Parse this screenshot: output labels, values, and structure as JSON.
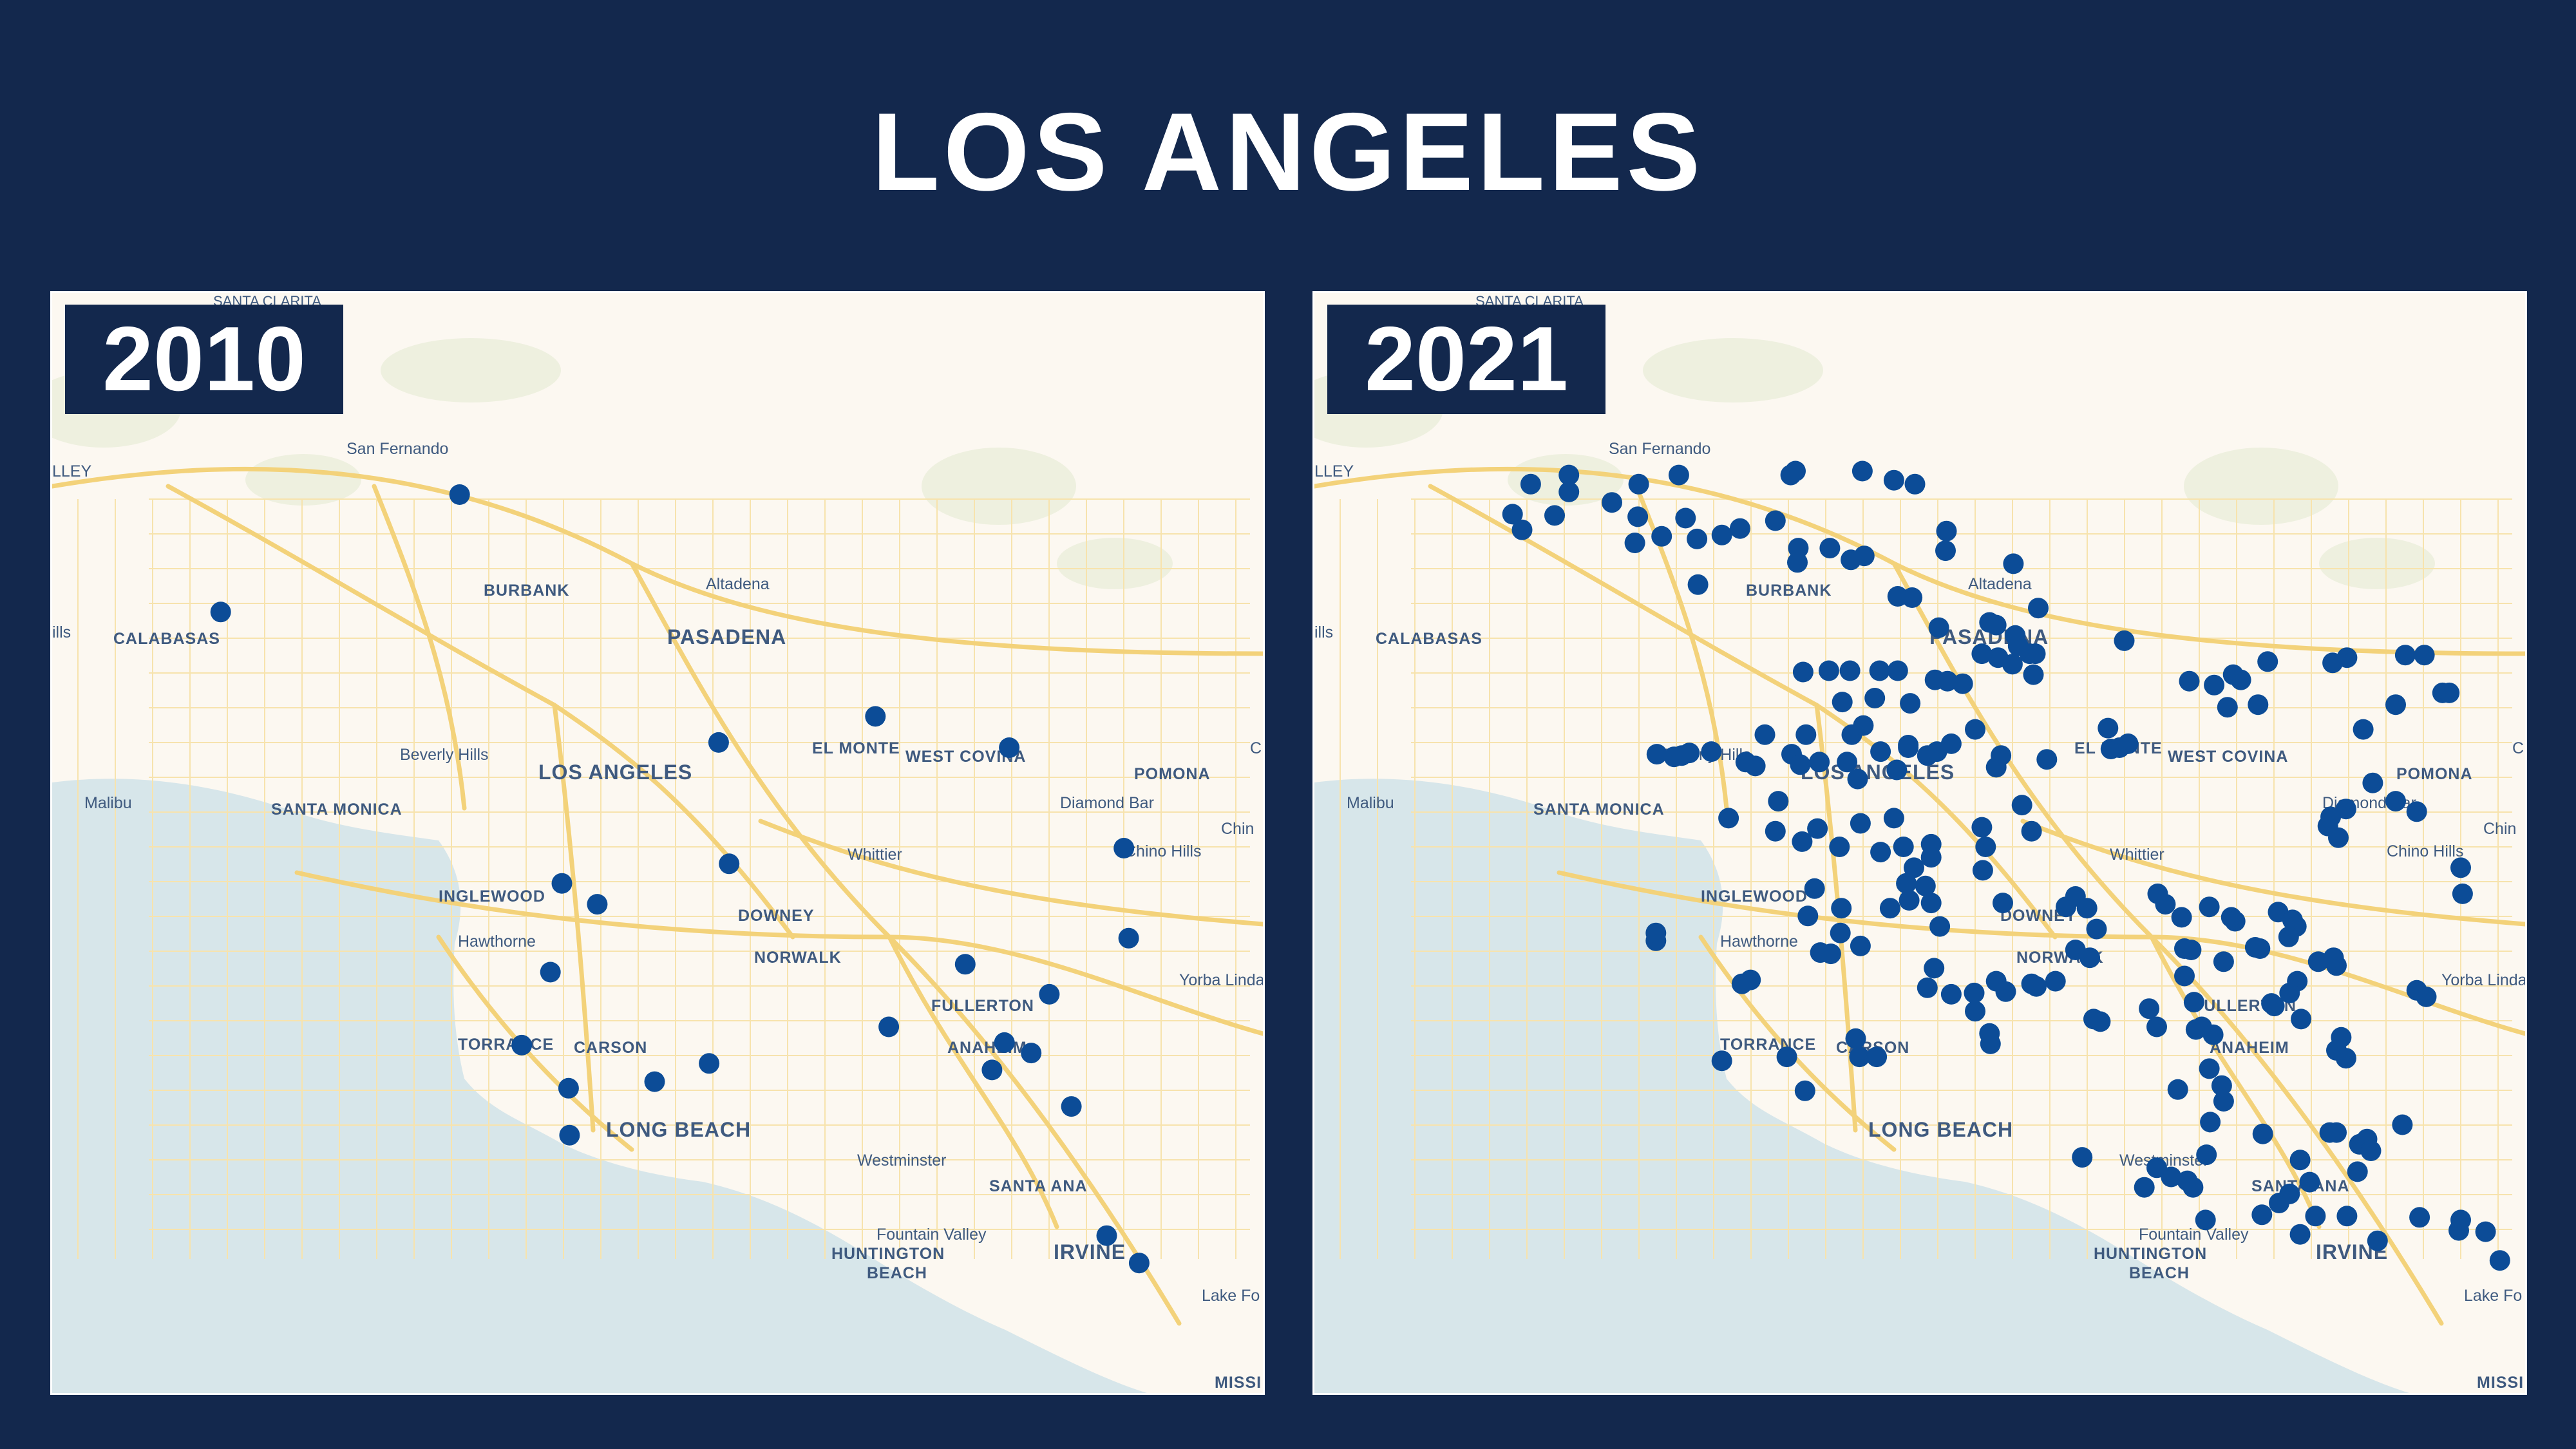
{
  "title": "LOS ANGELES",
  "colors": {
    "background": "#13284d",
    "dot": "#0c4c97",
    "land": "#fcf8f1",
    "water": "#d7e6ea",
    "road": "#f5d77a",
    "label": "#3f5a7f"
  },
  "labels": [
    {
      "text": "SANTA CLARITA",
      "cls": "small"
    },
    {
      "text": "LLEY",
      "cls": "town"
    },
    {
      "text": "San Fernando",
      "cls": "town"
    },
    {
      "text": "BURBANK",
      "cls": "region"
    },
    {
      "text": "Altadena",
      "cls": "town"
    },
    {
      "text": "ills",
      "cls": "town"
    },
    {
      "text": "CALABASAS",
      "cls": "region"
    },
    {
      "text": "PASADENA",
      "cls": "city"
    },
    {
      "text": "Beverly Hills",
      "cls": "town"
    },
    {
      "text": "EL MONTE",
      "cls": "region"
    },
    {
      "text": "WEST COVINA",
      "cls": "region"
    },
    {
      "text": "LOS ANGELES",
      "cls": "city"
    },
    {
      "text": "POMONA",
      "cls": "region"
    },
    {
      "text": "Malibu",
      "cls": "town"
    },
    {
      "text": "SANTA MONICA",
      "cls": "region"
    },
    {
      "text": "Diamond Bar",
      "cls": "town"
    },
    {
      "text": "Chin",
      "cls": "town"
    },
    {
      "text": "Chino Hills",
      "cls": "town"
    },
    {
      "text": "Whittier",
      "cls": "town"
    },
    {
      "text": "INGLEWOOD",
      "cls": "region"
    },
    {
      "text": "DOWNEY",
      "cls": "region"
    },
    {
      "text": "Hawthorne",
      "cls": "town"
    },
    {
      "text": "NORWALK",
      "cls": "region"
    },
    {
      "text": "Yorba Linda",
      "cls": "town"
    },
    {
      "text": "FULLERTON",
      "cls": "region"
    },
    {
      "text": "TORRANCE",
      "cls": "region"
    },
    {
      "text": "CARSON",
      "cls": "region"
    },
    {
      "text": "ANAHEIM",
      "cls": "region"
    },
    {
      "text": "LONG BEACH",
      "cls": "city"
    },
    {
      "text": "Westminster",
      "cls": "town"
    },
    {
      "text": "SANTA ANA",
      "cls": "region"
    },
    {
      "text": "Fountain Valley",
      "cls": "town"
    },
    {
      "text": "HUNTINGTON",
      "cls": "region"
    },
    {
      "text": "BEACH",
      "cls": "region"
    },
    {
      "text": "IRVINE",
      "cls": "city"
    },
    {
      "text": "Lake Fo",
      "cls": "town"
    },
    {
      "text": "MISSI",
      "cls": "region"
    },
    {
      "text": "C",
      "cls": "town"
    }
  ],
  "maps": [
    {
      "year": "2010",
      "locations": [
        [
          -118.445,
          34.268
        ],
        [
          -118.695,
          34.178
        ],
        [
          -118.174,
          34.078
        ],
        [
          -118.01,
          34.098
        ],
        [
          -117.87,
          34.074
        ],
        [
          -118.163,
          33.985
        ],
        [
          -118.338,
          33.97
        ],
        [
          -118.301,
          33.954
        ],
        [
          -118.35,
          33.902
        ],
        [
          -117.916,
          33.908
        ],
        [
          -117.875,
          33.848
        ],
        [
          -117.996,
          33.86
        ],
        [
          -117.828,
          33.885
        ],
        [
          -117.745,
          33.928
        ],
        [
          -117.75,
          33.997
        ],
        [
          -117.847,
          33.84
        ],
        [
          -117.888,
          33.827
        ],
        [
          -118.38,
          33.846
        ],
        [
          -118.241,
          33.818
        ],
        [
          -118.331,
          33.813
        ],
        [
          -118.184,
          33.832
        ],
        [
          -117.805,
          33.799
        ],
        [
          -118.33,
          33.777
        ],
        [
          -117.768,
          33.7
        ],
        [
          -117.734,
          33.679
        ]
      ]
    },
    {
      "year": "2021",
      "locations": [
        [
          -118.605,
          34.283
        ],
        [
          -118.645,
          34.276
        ],
        [
          -118.605,
          34.27
        ],
        [
          -118.532,
          34.276
        ],
        [
          -118.49,
          34.283
        ],
        [
          -118.368,
          34.286
        ],
        [
          -118.373,
          34.283
        ],
        [
          -118.298,
          34.286
        ],
        [
          -118.265,
          34.279
        ],
        [
          -118.243,
          34.276
        ],
        [
          -118.56,
          34.262
        ],
        [
          -118.664,
          34.253
        ],
        [
          -118.62,
          34.252
        ],
        [
          -118.533,
          34.251
        ],
        [
          -118.483,
          34.25
        ],
        [
          -118.389,
          34.248
        ],
        [
          -118.426,
          34.242
        ],
        [
          -118.445,
          34.237
        ],
        [
          -118.21,
          34.24
        ],
        [
          -118.654,
          34.241
        ],
        [
          -118.508,
          34.236
        ],
        [
          -118.536,
          34.231
        ],
        [
          -118.471,
          34.234
        ],
        [
          -118.365,
          34.227
        ],
        [
          -118.332,
          34.227
        ],
        [
          -118.296,
          34.221
        ],
        [
          -118.31,
          34.218
        ],
        [
          -118.366,
          34.216
        ],
        [
          -118.14,
          34.215
        ],
        [
          -118.211,
          34.225
        ],
        [
          -118.47,
          34.199
        ],
        [
          -118.261,
          34.19
        ],
        [
          -118.246,
          34.189
        ],
        [
          -118.218,
          34.166
        ],
        [
          -118.165,
          34.17
        ],
        [
          -118.114,
          34.181
        ],
        [
          -118.138,
          34.16
        ],
        [
          -118.158,
          34.168
        ],
        [
          -118.135,
          34.152
        ],
        [
          -118.123,
          34.146
        ],
        [
          -118.156,
          34.143
        ],
        [
          -118.173,
          34.146
        ],
        [
          -118.117,
          34.146
        ],
        [
          -118.141,
          34.138
        ],
        [
          -118.119,
          34.13
        ],
        [
          -118.024,
          34.156
        ],
        [
          -118.193,
          34.123
        ],
        [
          -118.28,
          34.133
        ],
        [
          -118.261,
          34.133
        ],
        [
          -118.285,
          34.112
        ],
        [
          -118.222,
          34.126
        ],
        [
          -118.209,
          34.125
        ],
        [
          -118.311,
          34.133
        ],
        [
          -118.36,
          34.132
        ],
        [
          -118.333,
          34.133
        ],
        [
          -118.248,
          34.108
        ],
        [
          -118.319,
          34.109
        ],
        [
          -118.357,
          34.084
        ],
        [
          -118.309,
          34.084
        ],
        [
          -118.297,
          34.091
        ],
        [
          -118.25,
          34.076
        ],
        [
          -118.279,
          34.071
        ],
        [
          -118.314,
          34.063
        ],
        [
          -118.4,
          34.084
        ],
        [
          -118.372,
          34.069
        ],
        [
          -118.42,
          34.063
        ],
        [
          -118.456,
          34.071
        ],
        [
          -118.479,
          34.07
        ],
        [
          -118.495,
          34.067
        ],
        [
          -118.487,
          34.068
        ],
        [
          -118.513,
          34.069
        ],
        [
          -118.41,
          34.06
        ],
        [
          -118.363,
          34.061
        ],
        [
          -118.343,
          34.063
        ],
        [
          -118.303,
          34.05
        ],
        [
          -118.262,
          34.057
        ],
        [
          -118.25,
          34.074
        ],
        [
          -118.23,
          34.068
        ],
        [
          -118.22,
          34.071
        ],
        [
          -118.205,
          34.077
        ],
        [
          -118.18,
          34.088
        ],
        [
          -118.158,
          34.059
        ],
        [
          -118.153,
          34.068
        ],
        [
          -118.105,
          34.065
        ],
        [
          -118.038,
          34.073
        ],
        [
          -117.956,
          34.125
        ],
        [
          -117.902,
          34.126
        ],
        [
          -117.93,
          34.122
        ],
        [
          -117.91,
          34.13
        ],
        [
          -117.874,
          34.14
        ],
        [
          -117.806,
          34.139
        ],
        [
          -117.791,
          34.143
        ],
        [
          -117.73,
          34.145
        ],
        [
          -117.71,
          34.145
        ],
        [
          -118.041,
          34.089
        ],
        [
          -117.916,
          34.105
        ],
        [
          -117.884,
          34.107
        ],
        [
          -117.74,
          34.107
        ],
        [
          -117.691,
          34.116
        ],
        [
          -117.684,
          34.116
        ],
        [
          -117.774,
          34.088
        ],
        [
          -118.029,
          34.074
        ],
        [
          -118.02,
          34.077
        ],
        [
          -117.764,
          34.047
        ],
        [
          -117.74,
          34.033
        ],
        [
          -117.718,
          34.025
        ],
        [
          -117.792,
          34.027
        ],
        [
          -117.808,
          34.021
        ],
        [
          -117.811,
          34.014
        ],
        [
          -117.8,
          34.005
        ],
        [
          -117.672,
          33.982
        ],
        [
          -117.67,
          33.962
        ],
        [
          -118.386,
          34.033
        ],
        [
          -118.438,
          34.02
        ],
        [
          -118.389,
          34.01
        ],
        [
          -118.345,
          34.012
        ],
        [
          -118.322,
          33.998
        ],
        [
          -118.3,
          34.016
        ],
        [
          -118.265,
          34.02
        ],
        [
          -118.279,
          33.994
        ],
        [
          -118.255,
          33.998
        ],
        [
          -118.226,
          34.0
        ],
        [
          -118.226,
          33.99
        ],
        [
          -118.252,
          33.97
        ],
        [
          -118.244,
          33.982
        ],
        [
          -118.232,
          33.968
        ],
        [
          -118.173,
          34.013
        ],
        [
          -118.131,
          34.03
        ],
        [
          -118.121,
          34.01
        ],
        [
          -118.169,
          33.998
        ],
        [
          -118.361,
          34.002
        ],
        [
          -118.348,
          33.966
        ],
        [
          -118.32,
          33.951
        ],
        [
          -118.355,
          33.945
        ],
        [
          -118.321,
          33.932
        ],
        [
          -118.269,
          33.951
        ],
        [
          -118.249,
          33.957
        ],
        [
          -118.226,
          33.955
        ],
        [
          -118.217,
          33.937
        ],
        [
          -118.151,
          33.955
        ],
        [
          -118.172,
          33.98
        ],
        [
          -118.085,
          33.952
        ],
        [
          -118.075,
          33.96
        ],
        [
          -118.063,
          33.951
        ],
        [
          -118.053,
          33.935
        ],
        [
          -117.989,
          33.962
        ],
        [
          -117.981,
          33.954
        ],
        [
          -117.964,
          33.944
        ],
        [
          -117.935,
          33.952
        ],
        [
          -117.912,
          33.944
        ],
        [
          -117.908,
          33.941
        ],
        [
          -117.863,
          33.948
        ],
        [
          -117.848,
          33.942
        ],
        [
          -117.844,
          33.937
        ],
        [
          -117.852,
          33.929
        ],
        [
          -117.961,
          33.92
        ],
        [
          -117.954,
          33.919
        ],
        [
          -117.92,
          33.91
        ],
        [
          -117.887,
          33.921
        ],
        [
          -117.882,
          33.92
        ],
        [
          -117.821,
          33.91
        ],
        [
          -117.843,
          33.895
        ],
        [
          -118.075,
          33.919
        ],
        [
          -118.06,
          33.913
        ],
        [
          -118.096,
          33.895
        ],
        [
          -118.121,
          33.893
        ],
        [
          -118.158,
          33.895
        ],
        [
          -118.181,
          33.886
        ],
        [
          -118.205,
          33.885
        ],
        [
          -118.223,
          33.905
        ],
        [
          -118.23,
          33.89
        ],
        [
          -118.3,
          33.922
        ],
        [
          -118.331,
          33.916
        ],
        [
          -118.342,
          33.917
        ],
        [
          -118.415,
          33.896
        ],
        [
          -118.424,
          33.893
        ],
        [
          -118.514,
          33.926
        ],
        [
          -118.514,
          33.932
        ],
        [
          -118.445,
          33.834
        ],
        [
          -118.358,
          33.811
        ],
        [
          -118.377,
          33.837
        ],
        [
          -118.301,
          33.837
        ],
        [
          -118.305,
          33.851
        ],
        [
          -118.283,
          33.837
        ],
        [
          -118.165,
          33.855
        ],
        [
          -118.164,
          33.847
        ],
        [
          -118.18,
          33.872
        ],
        [
          -118.148,
          33.887
        ],
        [
          -118.116,
          33.891
        ],
        [
          -118.056,
          33.866
        ],
        [
          -118.049,
          33.864
        ],
        [
          -117.998,
          33.874
        ],
        [
          -117.99,
          33.86
        ],
        [
          -117.949,
          33.858
        ],
        [
          -117.943,
          33.86
        ],
        [
          -117.931,
          33.854
        ],
        [
          -117.961,
          33.899
        ],
        [
          -117.951,
          33.879
        ],
        [
          -117.87,
          33.878
        ],
        [
          -117.867,
          33.876
        ],
        [
          -117.851,
          33.886
        ],
        [
          -117.839,
          33.866
        ],
        [
          -117.797,
          33.852
        ],
        [
          -117.792,
          33.836
        ],
        [
          -117.802,
          33.842
        ],
        [
          -117.802,
          33.907
        ],
        [
          -117.805,
          33.913
        ],
        [
          -117.718,
          33.888
        ],
        [
          -117.708,
          33.883
        ],
        [
          -117.935,
          33.828
        ],
        [
          -117.968,
          33.812
        ],
        [
          -117.922,
          33.815
        ],
        [
          -117.92,
          33.803
        ],
        [
          -117.934,
          33.787
        ],
        [
          -117.879,
          33.778
        ],
        [
          -117.802,
          33.779
        ],
        [
          -117.809,
          33.779
        ],
        [
          -117.84,
          33.758
        ],
        [
          -117.77,
          33.774
        ],
        [
          -117.778,
          33.77
        ],
        [
          -117.78,
          33.749
        ],
        [
          -117.766,
          33.765
        ],
        [
          -117.733,
          33.785
        ],
        [
          -117.938,
          33.762
        ],
        [
          -118.068,
          33.76
        ],
        [
          -117.99,
          33.752
        ],
        [
          -117.975,
          33.745
        ],
        [
          -117.958,
          33.742
        ],
        [
          -118.003,
          33.737
        ],
        [
          -117.952,
          33.737
        ],
        [
          -117.824,
          33.715
        ],
        [
          -117.851,
          33.732
        ],
        [
          -117.862,
          33.725
        ],
        [
          -117.791,
          33.715
        ],
        [
          -117.83,
          33.741
        ],
        [
          -117.88,
          33.716
        ],
        [
          -117.939,
          33.712
        ],
        [
          -117.84,
          33.701
        ],
        [
          -117.759,
          33.696
        ],
        [
          -117.715,
          33.714
        ],
        [
          -117.672,
          33.712
        ],
        [
          -117.646,
          33.703
        ],
        [
          -117.631,
          33.681
        ],
        [
          -117.674,
          33.704
        ]
      ]
    }
  ]
}
